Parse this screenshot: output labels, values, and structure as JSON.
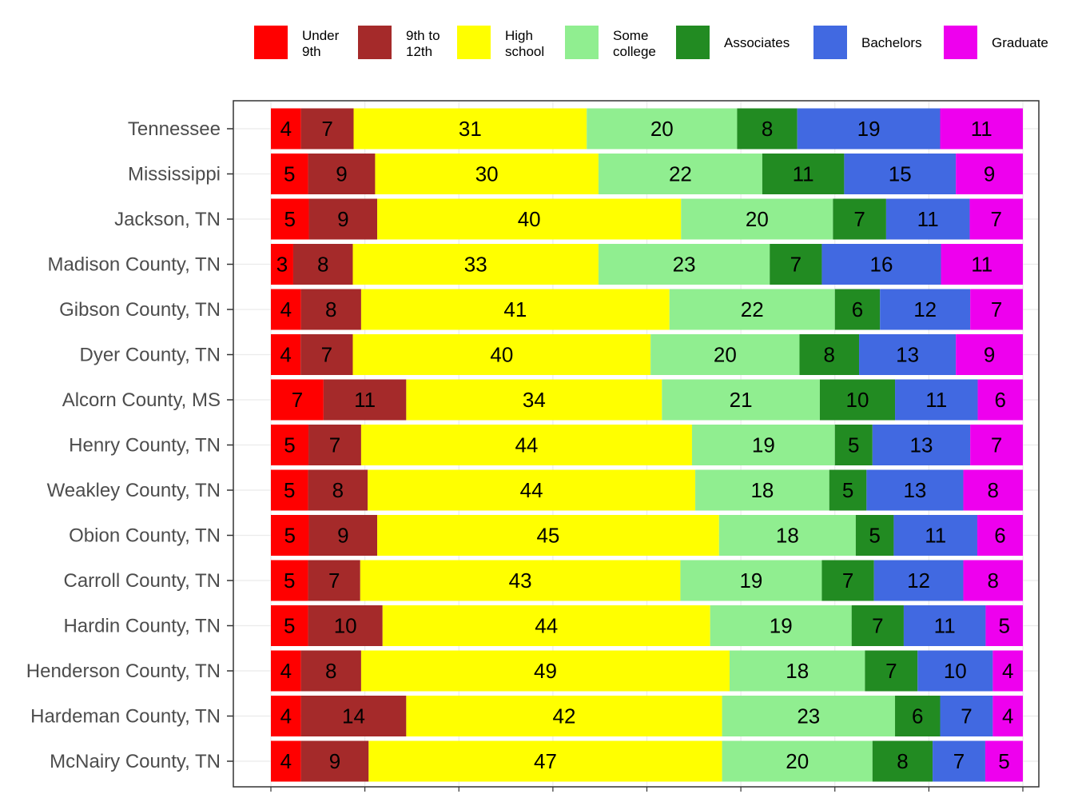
{
  "chart_data": {
    "type": "bar",
    "orientation": "horizontal",
    "stacked": true,
    "normalized_to_percent": true,
    "title": "",
    "xlabel": "",
    "ylabel": "",
    "xlim": [
      0,
      100
    ],
    "grid": true,
    "legend_position": "top",
    "categories": [
      "Tennessee",
      "Mississippi",
      "Jackson, TN",
      "Madison County, TN",
      "Gibson County, TN",
      "Dyer County, TN",
      "Alcorn County, MS",
      "Henry County, TN",
      "Weakley County, TN",
      "Obion County, TN",
      "Carroll County, TN",
      "Hardin County, TN",
      "Henderson County, TN",
      "Hardeman County, TN",
      "McNairy County, TN"
    ],
    "series": [
      {
        "name": "Under\n9th",
        "color": "#ff0000",
        "values": [
          4,
          5,
          5,
          3,
          4,
          4,
          7,
          5,
          5,
          5,
          5,
          5,
          4,
          4,
          4
        ]
      },
      {
        "name": "9th to\n12th",
        "color": "#a52a2a",
        "values": [
          7,
          9,
          9,
          8,
          8,
          7,
          11,
          7,
          8,
          9,
          7,
          10,
          8,
          14,
          9
        ]
      },
      {
        "name": "High\nschool",
        "color": "#ffff00",
        "values": [
          31,
          30,
          40,
          33,
          41,
          40,
          34,
          44,
          44,
          45,
          43,
          44,
          49,
          42,
          47
        ]
      },
      {
        "name": "Some\ncollege",
        "color": "#90ee90",
        "values": [
          20,
          22,
          20,
          23,
          22,
          20,
          21,
          19,
          18,
          18,
          19,
          19,
          18,
          23,
          20
        ]
      },
      {
        "name": "Associates",
        "color": "#228b22",
        "values": [
          8,
          11,
          7,
          7,
          6,
          8,
          10,
          5,
          5,
          5,
          7,
          7,
          7,
          6,
          8
        ]
      },
      {
        "name": "Bachelors",
        "color": "#4169e1",
        "values": [
          19,
          15,
          11,
          16,
          12,
          13,
          11,
          13,
          13,
          11,
          12,
          11,
          10,
          7,
          7
        ]
      },
      {
        "name": "Graduate",
        "color": "#ee00ee",
        "values": [
          11,
          9,
          7,
          11,
          7,
          9,
          6,
          7,
          8,
          6,
          8,
          5,
          4,
          4,
          5
        ]
      }
    ]
  }
}
